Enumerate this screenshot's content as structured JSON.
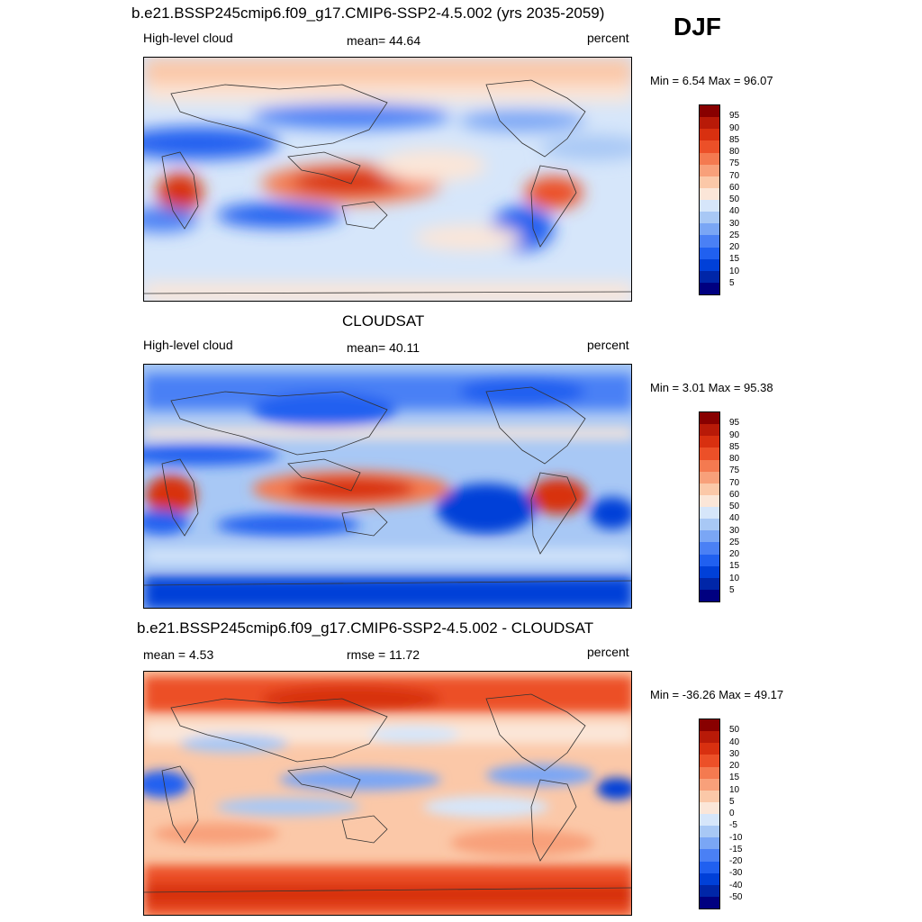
{
  "season": "DJF",
  "colors": {
    "abs_scale": [
      "#000080",
      "#0026a8",
      "#0040d8",
      "#2060f0",
      "#4a80f5",
      "#7aa6f5",
      "#a8c8f5",
      "#d6e6fa",
      "#fbe6d8",
      "#fbc8a8",
      "#f8a07a",
      "#f47a50",
      "#ec5028",
      "#d83010",
      "#b81a08",
      "#880000"
    ],
    "diff_scale": [
      "#000080",
      "#0026a8",
      "#0040d8",
      "#2060f0",
      "#4a80f5",
      "#7aa6f5",
      "#a8c8f5",
      "#d6e6fa",
      "#fbe6d8",
      "#fbc8a8",
      "#f8a07a",
      "#f47a50",
      "#ec5028",
      "#d83010",
      "#b81a08",
      "#880000"
    ]
  },
  "panels": [
    {
      "id": "model",
      "title": "b.e21.BSSP245cmip6.f09_g17.CMIP6-SSP2-4.5.002 (yrs 2035-2059)",
      "left_label": "High-level cloud",
      "center_label": "mean=  44.64",
      "right_label": "percent",
      "minmax": "Min =   6.54 Max =  96.07",
      "colorbar_ticks": [
        "95",
        "90",
        "85",
        "80",
        "75",
        "70",
        "60",
        "50",
        "40",
        "30",
        "25",
        "20",
        "15",
        "10",
        "5"
      ]
    },
    {
      "id": "obs",
      "title": "CLOUDSAT",
      "left_label": "High-level cloud",
      "center_label": "mean=  40.11",
      "right_label": "percent",
      "minmax": "Min =   3.01 Max =  95.38",
      "colorbar_ticks": [
        "95",
        "90",
        "85",
        "80",
        "75",
        "70",
        "60",
        "50",
        "40",
        "30",
        "25",
        "20",
        "15",
        "10",
        "5"
      ]
    },
    {
      "id": "diff",
      "title": "b.e21.BSSP245cmip6.f09_g17.CMIP6-SSP2-4.5.002 - CLOUDSAT",
      "left_label": "mean =   4.53",
      "center_label": "rmse =  11.72",
      "right_label": "percent",
      "minmax": "Min = -36.26 Max =  49.17",
      "colorbar_ticks": [
        "50",
        "40",
        "30",
        "20",
        "15",
        "10",
        "5",
        "0",
        "-5",
        "-10",
        "-15",
        "-20",
        "-30",
        "-40",
        "-50"
      ]
    }
  ]
}
